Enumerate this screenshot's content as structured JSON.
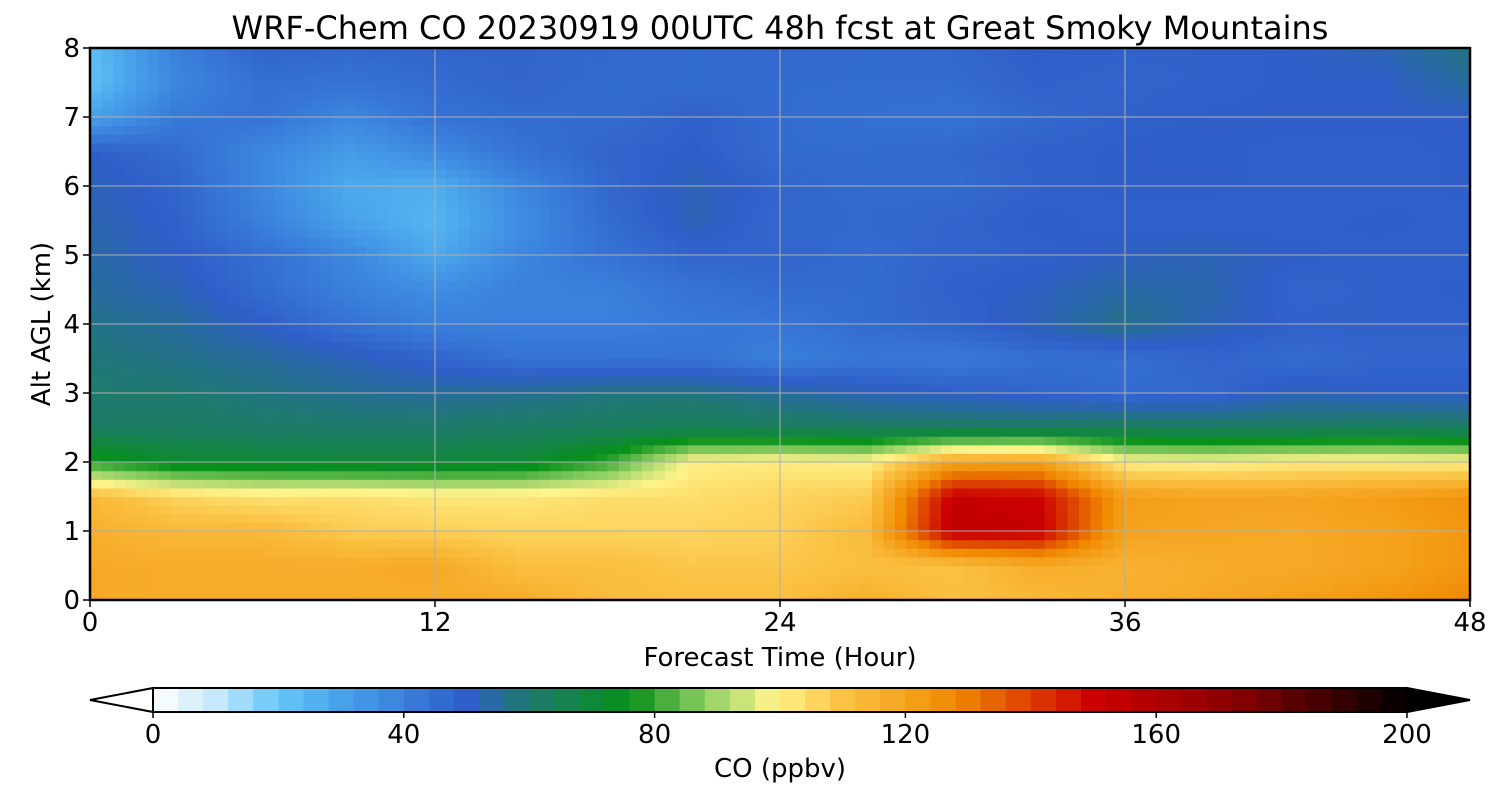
{
  "chart_data": {
    "type": "heatmap",
    "title": "WRF-Chem CO  20230919 00UTC 48h fcst at Great Smoky Mountains",
    "xlabel": "Forecast Time (Hour)",
    "ylabel": "Alt AGL (km)",
    "xlim": [
      0,
      48
    ],
    "ylim": [
      0,
      8
    ],
    "xticks": [
      "0",
      "12",
      "24",
      "36",
      "48"
    ],
    "yticks": [
      "0",
      "1",
      "2",
      "3",
      "4",
      "5",
      "6",
      "7",
      "8"
    ],
    "grid": true,
    "x": [
      0,
      3,
      6,
      9,
      12,
      15,
      18,
      21,
      24,
      27,
      30,
      33,
      36,
      39,
      42,
      45,
      48
    ],
    "y": [
      0,
      0.5,
      1,
      1.5,
      2,
      2.5,
      3,
      3.5,
      4,
      4.5,
      5,
      5.5,
      6,
      6.5,
      7,
      7.5,
      8
    ],
    "z": [
      [
        118,
        117,
        117,
        117,
        117,
        117,
        112,
        111,
        111,
        116,
        111,
        113,
        116,
        118,
        121,
        124,
        128
      ],
      [
        118,
        117,
        117,
        117,
        118,
        111,
        111,
        109,
        109,
        111,
        110,
        117,
        115,
        117,
        118,
        120,
        124
      ],
      [
        116,
        113,
        113,
        108,
        107,
        106,
        106,
        106,
        107,
        112,
        154,
        152,
        120,
        119,
        118,
        120,
        124
      ],
      [
        113,
        106,
        103,
        104,
        102,
        102,
        104,
        104,
        106,
        108,
        152,
        150,
        122,
        120,
        120,
        122,
        125
      ],
      [
        79,
        72,
        71,
        70,
        70,
        71,
        80,
        100,
        101,
        100,
        120,
        121,
        100,
        99,
        101,
        101,
        100
      ],
      [
        62,
        62,
        61,
        61,
        61,
        62,
        63,
        64,
        63,
        62,
        62,
        62,
        63,
        62,
        62,
        63,
        62
      ],
      [
        60,
        60,
        58,
        56,
        55,
        56,
        58,
        58,
        55,
        52,
        50,
        48,
        46,
        47,
        52,
        50,
        50
      ],
      [
        59,
        57,
        55,
        52,
        48,
        44,
        44,
        44,
        40,
        43,
        42,
        45,
        45,
        48,
        46,
        48,
        48
      ],
      [
        57,
        55,
        50,
        44,
        40,
        40,
        40,
        42,
        43,
        46,
        48,
        52,
        57,
        52,
        49,
        49,
        49
      ],
      [
        55,
        52,
        46,
        40,
        36,
        40,
        40,
        44,
        46,
        46,
        49,
        51,
        54,
        53,
        48,
        49,
        50
      ],
      [
        54,
        50,
        45,
        38,
        28,
        38,
        44,
        48,
        48,
        46,
        48,
        49,
        51,
        52,
        50,
        49,
        49
      ],
      [
        53,
        49,
        40,
        30,
        25,
        36,
        46,
        52,
        47,
        47,
        48,
        50,
        49,
        49,
        49,
        50,
        49
      ],
      [
        52,
        48,
        38,
        28,
        27,
        38,
        47,
        52,
        48,
        46,
        46,
        49,
        50,
        50,
        49,
        49,
        50
      ],
      [
        50,
        46,
        38,
        32,
        37,
        44,
        48,
        50,
        46,
        46,
        47,
        49,
        50,
        50,
        49,
        49,
        50
      ],
      [
        30,
        42,
        44,
        38,
        44,
        46,
        46,
        49,
        46,
        45,
        44,
        47,
        49,
        50,
        50,
        50,
        50
      ],
      [
        22,
        38,
        45,
        44,
        46,
        48,
        46,
        46,
        46,
        46,
        46,
        49,
        48,
        49,
        50,
        50,
        55
      ],
      [
        22,
        40,
        48,
        47,
        48,
        48,
        47,
        46,
        47,
        46,
        47,
        50,
        49,
        49,
        50,
        52,
        58
      ]
    ],
    "colorbar": {
      "label": "CO  (ppbv)",
      "min": 0,
      "max": 200,
      "ticks": [
        "0",
        "40",
        "80",
        "120",
        "160",
        "200"
      ],
      "extend": "both",
      "stops": [
        {
          "v": 0,
          "c": "#ffffff"
        },
        {
          "v": 10,
          "c": "#c6e8fb"
        },
        {
          "v": 20,
          "c": "#64c8f8"
        },
        {
          "v": 30,
          "c": "#48a2ea"
        },
        {
          "v": 40,
          "c": "#3a80dc"
        },
        {
          "v": 50,
          "c": "#2f5ec8"
        },
        {
          "v": 60,
          "c": "#1f7a6e"
        },
        {
          "v": 76,
          "c": "#07901a"
        },
        {
          "v": 88,
          "c": "#8dce62"
        },
        {
          "v": 99,
          "c": "#fff48c"
        },
        {
          "v": 110,
          "c": "#fbc244"
        },
        {
          "v": 128,
          "c": "#f08a00"
        },
        {
          "v": 150,
          "c": "#cc0000"
        },
        {
          "v": 172,
          "c": "#8b0000"
        },
        {
          "v": 200,
          "c": "#000000"
        }
      ]
    }
  }
}
